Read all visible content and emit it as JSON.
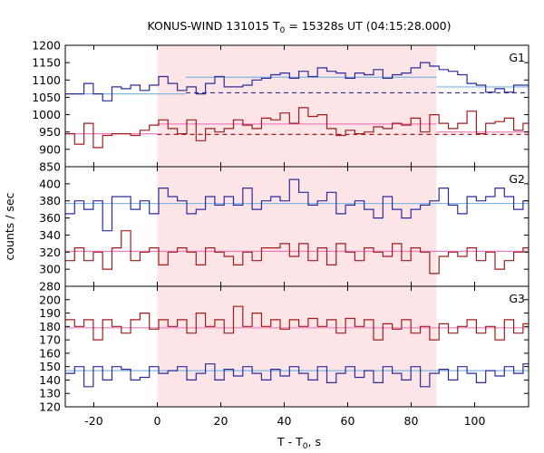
{
  "chart_data": {
    "type": "line",
    "title_main": "KONUS-WIND 131015 T",
    "title_sub": "0",
    "title_rest": " = 15328s UT (04:15:28.000)",
    "xlabel_main": "T - T",
    "xlabel_sub": "0",
    "xlabel_rest": ", s",
    "ylabel": "counts / sec",
    "xlim": [
      -29,
      117
    ],
    "x_ticks": [
      -20,
      0,
      20,
      40,
      60,
      80,
      100
    ],
    "highlight_interval": [
      0,
      88
    ],
    "highlight_color": "#fde4e6",
    "step_width": 2.944,
    "panels": [
      {
        "label": "G1",
        "ylim": [
          850,
          1200
        ],
        "y_ticks": [
          850,
          900,
          950,
          1000,
          1050,
          1100,
          1150,
          1200
        ],
        "series": [
          {
            "color": "#2b2b9e",
            "x_start": -29,
            "values": [
              1060,
              1060,
              1090,
              1060,
              1040,
              1080,
              1075,
              1085,
              1070,
              1085,
              1110,
              1090,
              1070,
              1080,
              1060,
              1090,
              1110,
              1080,
              1080,
              1085,
              1100,
              1105,
              1115,
              1120,
              1105,
              1125,
              1110,
              1135,
              1125,
              1120,
              1105,
              1120,
              1115,
              1130,
              1105,
              1115,
              1120,
              1135,
              1150,
              1140,
              1130,
              1125,
              1115,
              1090,
              1085,
              1065,
              1075,
              1065,
              1085,
              1085,
              1095,
              1085,
              1115,
              1095,
              1085,
              1100,
              1110,
              1080,
              1065,
              1080
            ],
            "mean_line": {
              "color": "#7fb7e0",
              "segments": [
                {
                  "x": [
                    -29,
                    9
                  ],
                  "y": 1060
                },
                {
                  "x": [
                    9,
                    88
                  ],
                  "y": 1108
                },
                {
                  "x": [
                    88,
                    117
                  ],
                  "y": 1080
                }
              ]
            },
            "baseline": {
              "color": "#2b2b9e",
              "x": [
                9,
                117
              ],
              "y": 1063
            }
          },
          {
            "color": "#a01c1c",
            "x_start": -29,
            "values": [
              945,
              915,
              975,
              905,
              940,
              945,
              945,
              940,
              955,
              970,
              985,
              960,
              945,
              985,
              925,
              960,
              950,
              960,
              985,
              970,
              960,
              990,
              985,
              1005,
              975,
              1020,
              995,
              1000,
              960,
              940,
              955,
              945,
              950,
              965,
              960,
              975,
              970,
              990,
              950,
              1000,
              975,
              960,
              975,
              1010,
              945,
              975,
              980,
              990,
              955,
              975,
              1000,
              970,
              945,
              940,
              925,
              945,
              935,
              960,
              960,
              945
            ],
            "mean_line": {
              "color": "#f07cbf",
              "segments": [
                {
                  "x": [
                    -29,
                    0
                  ],
                  "y": 945
                },
                {
                  "x": [
                    0,
                    88
                  ],
                  "y": 973
                },
                {
                  "x": [
                    88,
                    117
                  ],
                  "y": 950
                }
              ]
            },
            "baseline": {
              "color": "#a01c1c",
              "x": [
                0,
                117
              ],
              "y": 943
            }
          }
        ]
      },
      {
        "label": "G2",
        "ylim": [
          280,
          420
        ],
        "y_ticks": [
          280,
          300,
          320,
          340,
          360,
          380,
          400
        ],
        "series": [
          {
            "color": "#2b2b9e",
            "x_start": -29,
            "values": [
              365,
              380,
              370,
              380,
              345,
              385,
              385,
              370,
              380,
              365,
              395,
              385,
              380,
              365,
              370,
              385,
              375,
              385,
              375,
              395,
              370,
              380,
              385,
              380,
              405,
              390,
              375,
              380,
              390,
              365,
              375,
              380,
              370,
              360,
              385,
              370,
              360,
              370,
              375,
              380,
              395,
              375,
              365,
              385,
              380,
              385,
              395,
              385,
              370,
              380,
              375,
              385,
              370,
              395,
              375,
              395,
              380,
              385,
              380,
              390
            ],
            "mean_line": {
              "color": "#7fb7e0",
              "segments": [
                {
                  "x": [
                    -29,
                    117
                  ],
                  "y": 377
                }
              ]
            }
          },
          {
            "color": "#a01c1c",
            "x_start": -29,
            "values": [
              310,
              325,
              310,
              320,
              300,
              325,
              345,
              310,
              320,
              325,
              305,
              320,
              325,
              320,
              305,
              325,
              320,
              315,
              305,
              320,
              310,
              325,
              325,
              330,
              315,
              330,
              310,
              325,
              305,
              330,
              320,
              310,
              325,
              320,
              315,
              330,
              310,
              325,
              320,
              295,
              315,
              320,
              315,
              325,
              310,
              320,
              300,
              310,
              320,
              325,
              310,
              320,
              325,
              315,
              300,
              320,
              315,
              320,
              330,
              305
            ],
            "mean_line": {
              "color": "#f07cbf",
              "segments": [
                {
                  "x": [
                    -29,
                    117
                  ],
                  "y": 321
                }
              ]
            }
          }
        ]
      },
      {
        "label": "G3",
        "ylim": [
          120,
          210
        ],
        "y_ticks": [
          120,
          130,
          140,
          150,
          160,
          170,
          180,
          190,
          200
        ],
        "series": [
          {
            "color": "#2b2b9e",
            "x_start": -29,
            "values": [
              145,
              150,
              135,
              150,
              140,
              150,
              148,
              140,
              142,
              150,
              145,
              147,
              150,
              140,
              145,
              152,
              140,
              148,
              143,
              150,
              145,
              140,
              148,
              143,
              150,
              145,
              140,
              150,
              138,
              145,
              150,
              142,
              147,
              138,
              150,
              145,
              140,
              150,
              135,
              145,
              148,
              140,
              150,
              145,
              138,
              147,
              143,
              150,
              145,
              152,
              138,
              145,
              150,
              148,
              142,
              150,
              145,
              140,
              150,
              147
            ],
            "mean_line": {
              "color": "#7fb7e0",
              "segments": [
                {
                  "x": [
                    -29,
                    117
                  ],
                  "y": 147
                }
              ]
            }
          },
          {
            "color": "#a01c1c",
            "x_start": -29,
            "values": [
              185,
              180,
              185,
              170,
              185,
              180,
              175,
              185,
              190,
              178,
              185,
              180,
              185,
              175,
              190,
              180,
              185,
              175,
              195,
              180,
              190,
              180,
              185,
              178,
              185,
              180,
              186,
              180,
              185,
              175,
              186,
              180,
              185,
              170,
              182,
              178,
              185,
              175,
              180,
              170,
              182,
              175,
              180,
              185,
              175,
              180,
              170,
              185,
              175,
              182,
              178,
              175,
              180,
              170,
              185,
              178,
              182,
              180,
              185,
              178
            ],
            "mean_line": {
              "color": "#f07cbf",
              "segments": [
                {
                  "x": [
                    -29,
                    117
                  ],
                  "y": 179
                }
              ]
            }
          }
        ]
      }
    ]
  }
}
